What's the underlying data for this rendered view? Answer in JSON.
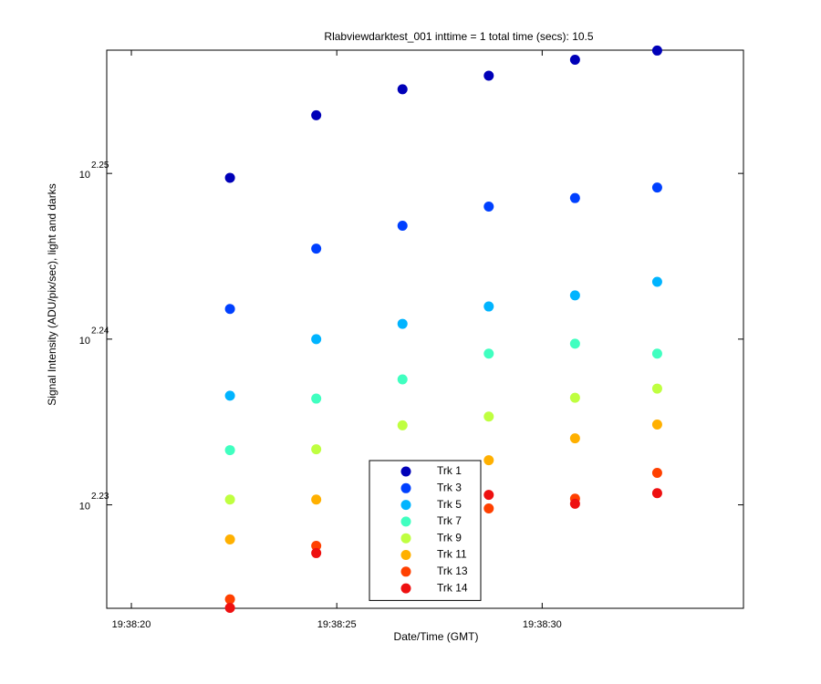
{
  "chart_data": {
    "type": "scatter",
    "title": "Rlabviewdarktest_001 inttime = 1 total time (secs): 10.5",
    "xlabel": "Date/Time (GMT)",
    "ylabel": "Signal Intensity (ADU/pix/sec), light and darks",
    "y_scale": "log",
    "grid": false,
    "legend": "bottom-center",
    "x": [
      "19:38:22.4",
      "19:38:24.5",
      "19:38:26.6",
      "19:38:28.7",
      "19:38:30.8",
      "19:38:32.8"
    ],
    "xlim": [
      "19:38:19.4",
      "19:38:34.9"
    ],
    "xticks": [
      "19:38:20",
      "19:38:25",
      "19:38:30"
    ],
    "ylim": [
      167.4,
      180.9
    ],
    "yticks": [
      {
        "value": 169.824,
        "label": "10",
        "exponent": "2.23"
      },
      {
        "value": 173.78,
        "label": "10",
        "exponent": "2.24"
      },
      {
        "value": 177.828,
        "label": "10",
        "exponent": "2.25"
      }
    ],
    "series": [
      {
        "name": "Trk 1",
        "color": "#0000b8",
        "values": [
          177.72,
          179.27,
          179.92,
          180.26,
          180.66,
          180.89
        ]
      },
      {
        "name": "Trk 3",
        "color": "#0040ff",
        "values": [
          174.51,
          175.98,
          176.54,
          177.01,
          177.22,
          177.48
        ]
      },
      {
        "name": "Trk 5",
        "color": "#00b4ff",
        "values": [
          172.42,
          173.78,
          174.15,
          174.57,
          174.84,
          175.17
        ]
      },
      {
        "name": "Trk 7",
        "color": "#40ffc0",
        "values": [
          171.12,
          172.35,
          172.81,
          173.43,
          173.67,
          173.43
        ]
      },
      {
        "name": "Trk 9",
        "color": "#bfff40",
        "values": [
          169.95,
          171.14,
          171.71,
          171.92,
          172.37,
          172.59
        ]
      },
      {
        "name": "Trk 11",
        "color": "#ffb000",
        "values": [
          169.01,
          169.95,
          null,
          170.88,
          171.4,
          171.73
        ]
      },
      {
        "name": "Trk 13",
        "color": "#ff4000",
        "values": [
          167.61,
          168.86,
          null,
          169.74,
          169.97,
          170.58
        ]
      },
      {
        "name": "Trk 14",
        "color": "#ee1010",
        "values": [
          167.41,
          168.69,
          null,
          170.06,
          169.85,
          170.1
        ]
      }
    ]
  }
}
